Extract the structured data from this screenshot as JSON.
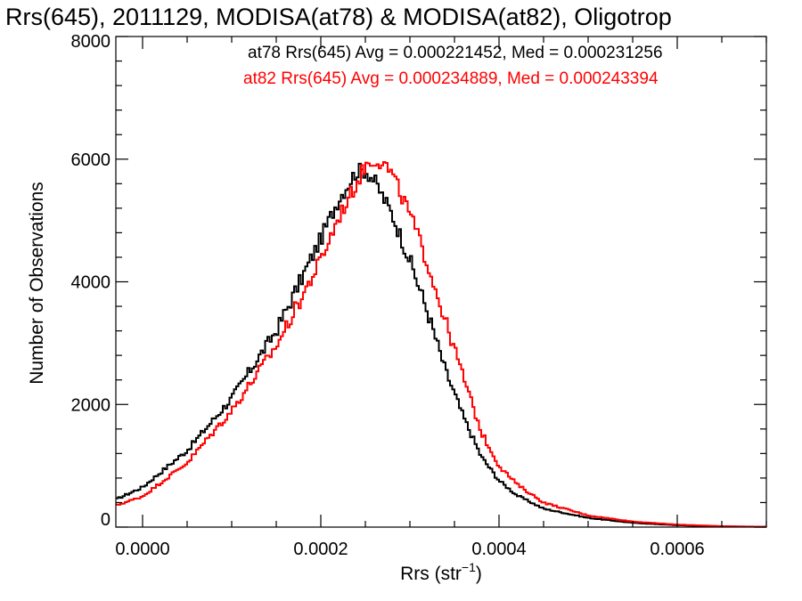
{
  "chart_data": {
    "type": "line",
    "title": "Rrs(645), 2011129, MODISA(at78) & MODISA(at82), Oligotrop",
    "xlabel": "Rrs (str",
    "xlabel_sup": "−1",
    "xlabel_close": ")",
    "ylabel": "Number of Observations",
    "xlim": [
      -3e-05,
      0.0007
    ],
    "ylim": [
      0,
      8000
    ],
    "xticks": [
      0.0,
      0.0002,
      0.0004,
      0.0006
    ],
    "xtick_labels": [
      "0.0000",
      "0.0002",
      "0.0004",
      "0.0006"
    ],
    "yticks": [
      0,
      2000,
      4000,
      6000,
      8000
    ],
    "ytick_labels": [
      "0",
      "2000",
      "4000",
      "6000",
      "8000"
    ],
    "grid": false,
    "legend_position": "top-right",
    "series": [
      {
        "name": "at78 Rrs(645) Avg = 0.000221452, Med = 0.000231256",
        "color": "#000000",
        "x": [
          -3e-05,
          0.0,
          5e-05,
          0.0001,
          0.00015,
          0.0002,
          0.00022,
          0.00024,
          0.00025,
          0.00026,
          0.00028,
          0.0003,
          0.00032,
          0.00034,
          0.00036,
          0.00038,
          0.0004,
          0.00042,
          0.00045,
          0.0005,
          0.00055,
          0.0006,
          0.00065,
          0.0007
        ],
        "y": [
          450,
          650,
          1250,
          2100,
          3200,
          4700,
          5350,
          5800,
          5820,
          5650,
          5100,
          4350,
          3500,
          2550,
          1800,
          1150,
          760,
          520,
          300,
          150,
          70,
          30,
          10,
          5
        ]
      },
      {
        "name": "at82 Rrs(645) Avg = 0.000234889, Med = 0.000243394",
        "color": "#ff0000",
        "x": [
          -3e-05,
          0.0,
          5e-05,
          0.0001,
          0.00015,
          0.0002,
          0.00022,
          0.00024,
          0.00025,
          0.00026,
          0.00027,
          0.00028,
          0.0003,
          0.00032,
          0.00034,
          0.00036,
          0.00038,
          0.0004,
          0.00042,
          0.00045,
          0.0005,
          0.00055,
          0.0006,
          0.00065,
          0.0007
        ],
        "y": [
          350,
          500,
          1050,
          1900,
          2950,
          4350,
          5050,
          5600,
          5900,
          6000,
          5950,
          5750,
          5100,
          4300,
          3350,
          2450,
          1550,
          1000,
          700,
          400,
          190,
          90,
          40,
          15,
          5
        ]
      }
    ]
  }
}
